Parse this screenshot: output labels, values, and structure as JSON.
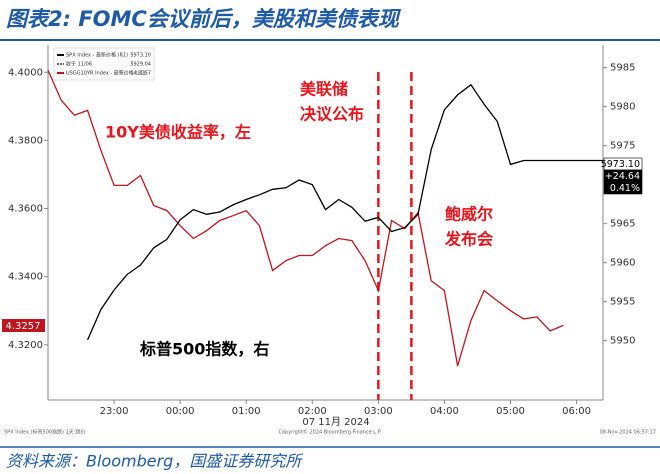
{
  "header": {
    "title": "图表2: FOMC会议前后，美股和美债表现"
  },
  "footer": {
    "source": "资料来源：Bloomberg，国盛证券研究所"
  },
  "chart_data": {
    "type": "line",
    "xlabel": "07 11月 2024",
    "xlim": [
      22,
      30.4
    ],
    "xticks": [
      {
        "value": 23,
        "label": "23:00"
      },
      {
        "value": 24,
        "label": "00:00"
      },
      {
        "value": 25,
        "label": "01:00"
      },
      {
        "value": 26,
        "label": "02:00"
      },
      {
        "value": 27,
        "label": "03:00"
      },
      {
        "value": 28,
        "label": "04:00"
      },
      {
        "value": 29,
        "label": "05:00"
      },
      {
        "value": 30,
        "label": "06:00"
      }
    ],
    "ylim": [
      4.3038,
      4.408
    ],
    "yticks": [
      {
        "value": 4.32,
        "label": "4.3200"
      },
      {
        "value": 4.34,
        "label": "4.3400"
      },
      {
        "value": 4.36,
        "label": "4.3600"
      },
      {
        "value": 4.38,
        "label": "4.3800"
      },
      {
        "value": 4.4,
        "label": "4.4000"
      }
    ],
    "y2lim": [
      5942.4,
      5987.9
    ],
    "y2ticks": [
      5950,
      5955,
      5960,
      5965,
      5970,
      5975,
      5980,
      5985
    ],
    "x": [
      22.0,
      22.2,
      22.4,
      22.6,
      22.8,
      23.0,
      23.2,
      23.4,
      23.6,
      23.8,
      24.0,
      24.2,
      24.4,
      24.6,
      24.8,
      25.0,
      25.2,
      25.4,
      25.6,
      25.8,
      26.0,
      26.2,
      26.4,
      26.6,
      26.8,
      27.0,
      27.2,
      27.4,
      27.6,
      27.8,
      28.0,
      28.2,
      28.4,
      28.6,
      28.8,
      29.0,
      29.2,
      29.4,
      29.6,
      29.8,
      30.0,
      30.2,
      30.4
    ],
    "series": [
      {
        "name": "USGG10YR Index - 最新价格 (L1)",
        "legend_value": "4.3257",
        "color": "#c0151f",
        "axis": "y",
        "values": [
          4.4006,
          4.3918,
          4.3874,
          4.3888,
          4.3771,
          4.3668,
          4.3668,
          4.3697,
          4.3609,
          4.3594,
          4.355,
          4.3512,
          4.3535,
          4.3565,
          4.3579,
          4.3594,
          4.355,
          4.3418,
          4.3447,
          4.3462,
          4.3462,
          4.3491,
          4.3512,
          4.3506,
          4.3447,
          4.3359,
          4.3565,
          4.3541,
          4.3588,
          4.3388,
          4.3359,
          4.3138,
          4.3271,
          4.3359,
          4.3329,
          4.33,
          4.3276,
          4.3282,
          4.3241,
          4.3257,
          null,
          null,
          null
        ]
      },
      {
        "name": "SPX Index - 最新价格 (R1)",
        "legend_value": "5973.10",
        "color": "#000000",
        "axis": "y2",
        "values": [
          null,
          null,
          null,
          5950.1,
          5954.0,
          5956.5,
          5958.5,
          5959.7,
          5961.9,
          5963.0,
          5965.5,
          5966.8,
          5966.2,
          5966.5,
          5967.4,
          5968.1,
          5968.7,
          5969.4,
          5969.6,
          5970.6,
          5970.0,
          5966.8,
          5968.1,
          5967.1,
          5965.3,
          5965.8,
          5964.0,
          5964.5,
          5966.2,
          5974.5,
          5979.6,
          5981.5,
          5982.8,
          5980.3,
          5978.1,
          5972.6,
          5973.1,
          5973.1,
          5973.1,
          5973.1,
          5973.1,
          5973.1,
          5973.1
        ]
      }
    ],
    "legend_extra": {
      "name": "收于 11/06",
      "value": "5929.04"
    },
    "event_lines": [
      27.0,
      27.5
    ],
    "event_color": "#e8141c",
    "annotations": [
      {
        "lines": [
          "10Y美债收益率，左"
        ],
        "color": "#e8141c"
      },
      {
        "lines": [
          "美联储",
          "决议公布"
        ],
        "color": "#e8141c"
      },
      {
        "lines": [
          "鲍威尔",
          "发布会"
        ],
        "color": "#e8141c"
      },
      {
        "lines": [
          "标普500指数，右"
        ],
        "color": "#000000"
      }
    ],
    "last_labels": {
      "left": "4.3257",
      "right": [
        "5973.10",
        "+24.64",
        "0.41%"
      ]
    },
    "notes": [
      "SPX Index (标普500指数) 1天 跳价",
      "Copyright© 2024 Bloomberg Finance L.P.",
      "08-Nov-2024 06:57:17"
    ]
  }
}
